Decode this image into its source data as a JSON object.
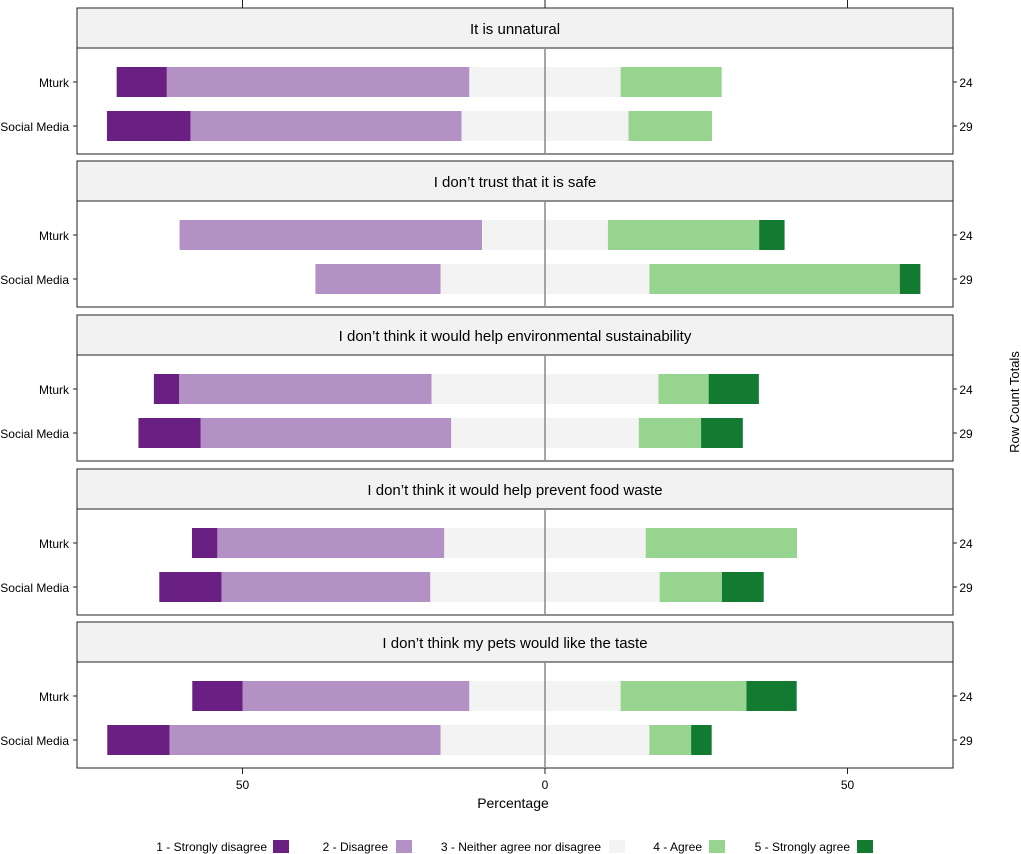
{
  "chart_data": {
    "type": "diverging-stacked-bar",
    "xlabel": "Percentage",
    "right_axis_label": "Row Count Totals",
    "x_ticks": [
      -50,
      0,
      50
    ],
    "x_tick_labels": [
      "50",
      "0",
      "50"
    ],
    "xlim": [
      -78,
      67
    ],
    "levels": [
      {
        "name": "1 - Strongly disagree",
        "color": "#6a1f82"
      },
      {
        "name": "2 -  Disagree",
        "color": "#b491c4"
      },
      {
        "name": "3 - Neither agree nor disagree",
        "color": "#f3f3f3"
      },
      {
        "name": "4 - Agree",
        "color": "#96d48f"
      },
      {
        "name": "5 - Strongly agree",
        "color": "#137a32"
      }
    ],
    "panels": [
      {
        "title": "It is unnatural",
        "rows": [
          {
            "label": "Mturk",
            "total": "24",
            "values": [
              8.3,
              50.0,
              25.0,
              16.7,
              0
            ]
          },
          {
            "label": "Social Media",
            "total": "29",
            "values": [
              13.8,
              44.8,
              27.6,
              13.8,
              0
            ]
          }
        ]
      },
      {
        "title": "I don’t trust that it is safe",
        "rows": [
          {
            "label": "Mturk",
            "total": "24",
            "values": [
              0,
              50.0,
              20.8,
              25.0,
              4.2
            ]
          },
          {
            "label": "Social Media",
            "total": "29",
            "values": [
              0,
              20.7,
              34.5,
              41.4,
              3.4
            ]
          }
        ]
      },
      {
        "title": "I don’t think it would help environmental sustainability",
        "rows": [
          {
            "label": "Mturk",
            "total": "24",
            "values": [
              4.2,
              41.7,
              37.5,
              8.3,
              8.3
            ]
          },
          {
            "label": "Social Media",
            "total": "29",
            "values": [
              10.3,
              41.4,
              31.0,
              10.3,
              6.9
            ]
          }
        ]
      },
      {
        "title": "I don’t think it would help prevent food waste",
        "rows": [
          {
            "label": "Mturk",
            "total": "24",
            "values": [
              4.2,
              37.5,
              33.3,
              25.0,
              0
            ]
          },
          {
            "label": "Social Media",
            "total": "29",
            "values": [
              10.3,
              34.5,
              37.9,
              10.3,
              6.9
            ]
          }
        ]
      },
      {
        "title": "I don’t think my pets would like the taste",
        "rows": [
          {
            "label": "Mturk",
            "total": "24",
            "values": [
              8.3,
              37.5,
              25.0,
              20.8,
              8.3
            ]
          },
          {
            "label": "Social Media",
            "total": "29",
            "values": [
              10.3,
              44.8,
              34.5,
              6.9,
              3.4
            ]
          }
        ]
      }
    ]
  }
}
